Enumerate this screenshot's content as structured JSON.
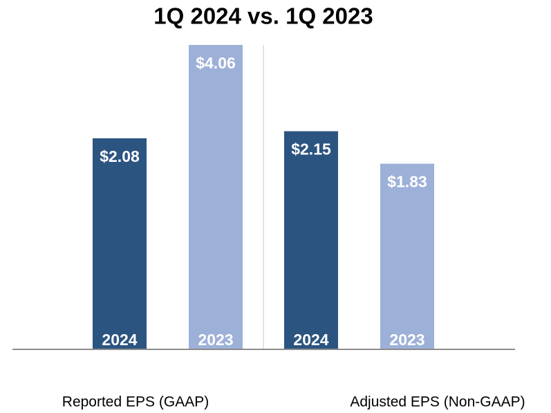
{
  "chart_data": {
    "type": "bar",
    "title": "1Q 2024 vs. 1Q 2023",
    "categories": [
      "Reported EPS (GAAP)",
      "Adjusted EPS (Non-GAAP)"
    ],
    "series": [
      {
        "name": "2024",
        "color": "#2c5480",
        "values": [
          2.08,
          2.15
        ],
        "value_labels": [
          "$2.08",
          "$2.15"
        ]
      },
      {
        "name": "2023",
        "color": "#9db0d8",
        "values": [
          4.06,
          1.83
        ],
        "value_labels": [
          "$4.06",
          "$1.83"
        ]
      }
    ],
    "ylim": [
      0,
      3
    ]
  }
}
